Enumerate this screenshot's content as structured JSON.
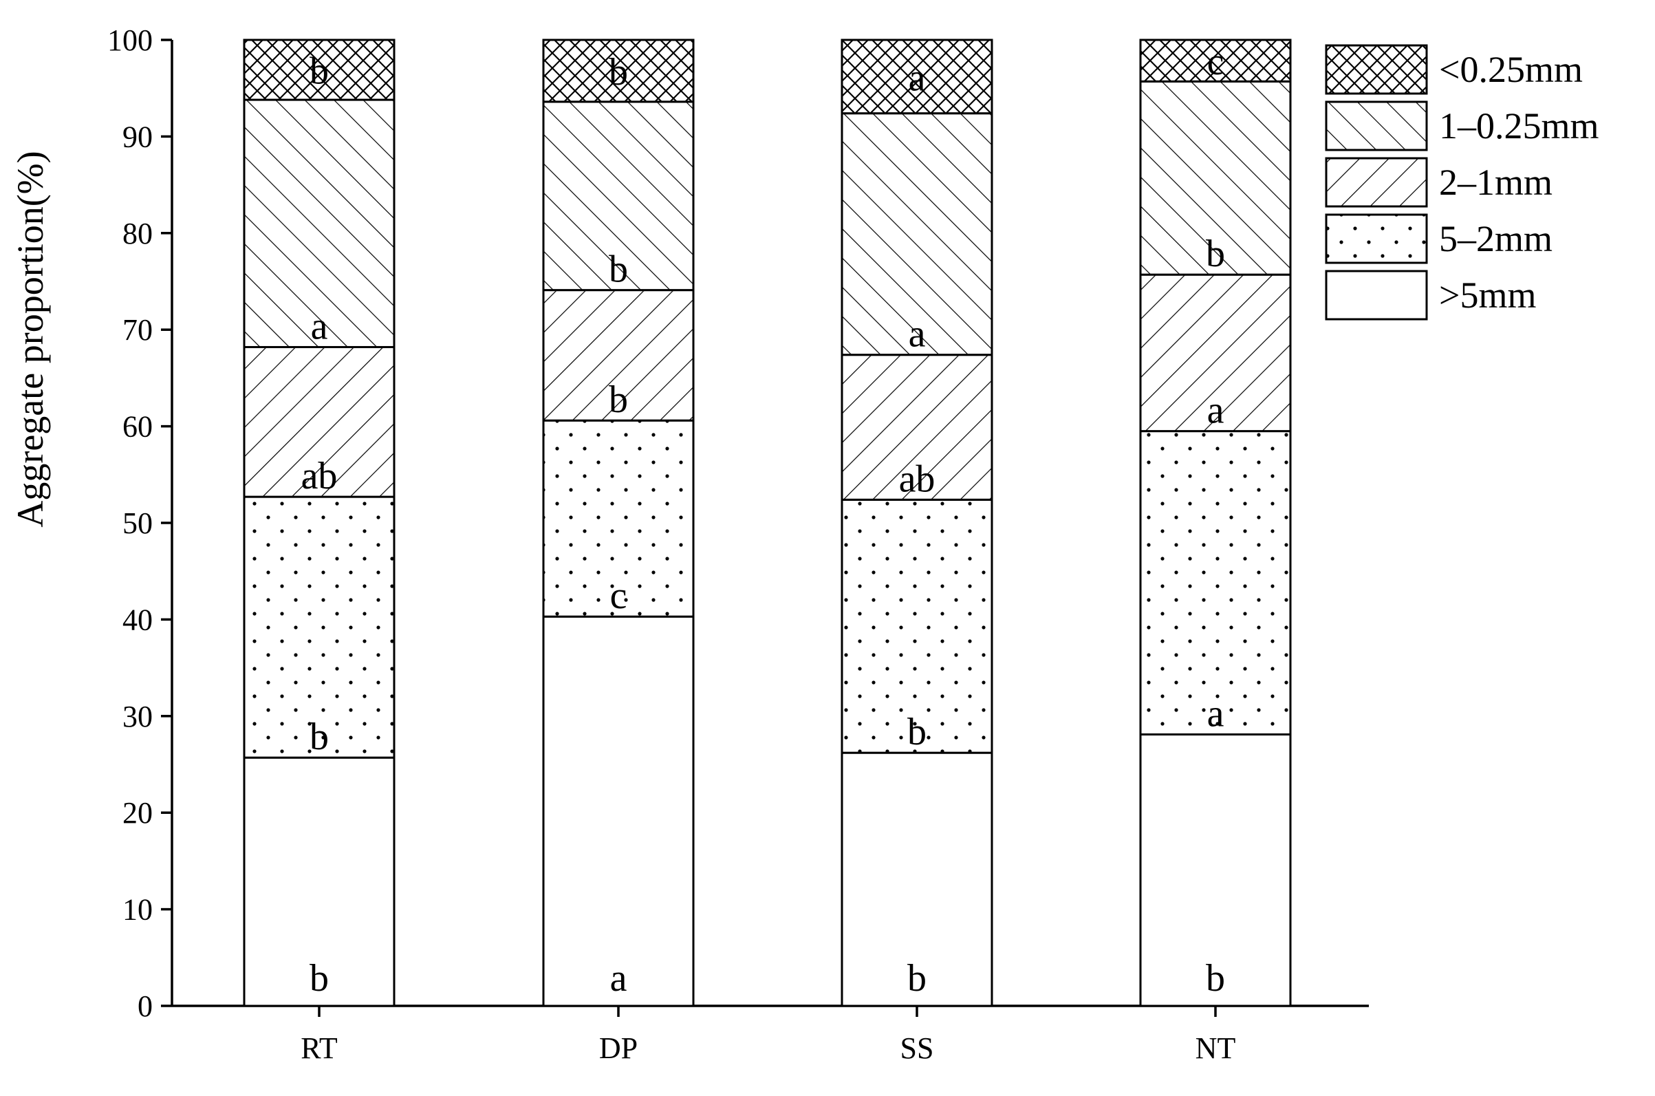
{
  "chart_data": {
    "type": "bar",
    "stacked": true,
    "categories": [
      "RT",
      "DP",
      "SS",
      "NT"
    ],
    "ylabel": "Aggregate proportion(%)",
    "xlabel": "",
    "ylim": [
      0,
      100
    ],
    "yticks": [
      0,
      10,
      20,
      30,
      40,
      50,
      60,
      70,
      80,
      90,
      100
    ],
    "grid": false,
    "legend_position": "top-right",
    "series": [
      {
        "name": ">5mm",
        "pattern": "blank",
        "values": [
          25.7,
          40.3,
          26.2,
          28.1
        ],
        "letters": [
          "b",
          "a",
          "b",
          "b"
        ]
      },
      {
        "name": "5–2mm",
        "pattern": "dots",
        "values": [
          27.0,
          20.3,
          26.2,
          31.4
        ],
        "letters": [
          "b",
          "c",
          "b",
          "a"
        ]
      },
      {
        "name": "2–1mm",
        "pattern": "forward-hatch",
        "values": [
          15.5,
          13.5,
          15.0,
          16.2
        ],
        "letters": [
          "ab",
          "b",
          "ab",
          "a"
        ]
      },
      {
        "name": "1–0.25mm",
        "pattern": "back-hatch",
        "values": [
          25.6,
          19.5,
          25.0,
          20.0
        ],
        "letters": [
          "a",
          "b",
          "a",
          "b"
        ]
      },
      {
        "name": "<0.25mm",
        "pattern": "cross-hatch",
        "values": [
          6.2,
          6.4,
          7.6,
          4.3
        ],
        "letters": [
          "b",
          "b",
          "a",
          "c"
        ]
      }
    ],
    "colors": {
      "stroke": "#000000",
      "fill": "#ffffff"
    }
  }
}
